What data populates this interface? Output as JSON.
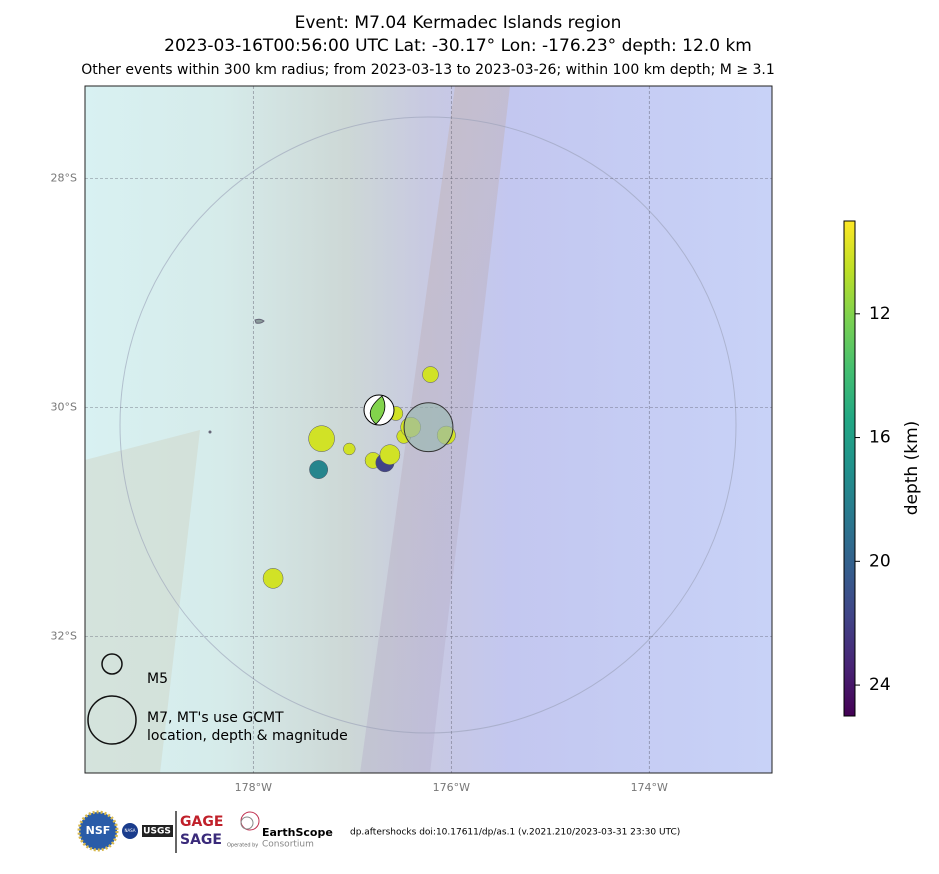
{
  "map": {
    "title": "Event: M7.04 Kermadec Islands region",
    "subtitle": "2023-03-16T00:56:00 UTC Lat: -30.17° Lon: -176.23° depth: 12.0 km",
    "description": "Other events within 300 km radius; from 2023-03-13 to 2023-03-26; within 100 km depth; M ≥ 3.1",
    "xlim": [
      -179.7,
      -172.76
    ],
    "ylim": [
      -33.19,
      -27.19
    ],
    "xticks": [
      {
        "value": -178,
        "label": "178°W"
      },
      {
        "value": -176,
        "label": "176°W"
      },
      {
        "value": -174,
        "label": "174°W"
      }
    ],
    "yticks": [
      {
        "value": -28,
        "label": "28°S"
      },
      {
        "value": -30,
        "label": "30°S"
      },
      {
        "value": -32,
        "label": "32°S"
      }
    ],
    "grid": true,
    "colormap": "viridis",
    "colorbar": {
      "label": "depth (km)",
      "lim": [
        9,
        25
      ],
      "ticks": [
        12,
        16,
        20,
        24
      ]
    },
    "main_event": {
      "lon": -176.23,
      "lat": -30.17,
      "depth": 12.0,
      "mag": 7.04
    },
    "moment_tensor": {
      "lon": -176.73,
      "lat": -30.02,
      "depth": 12.0
    },
    "events": {
      "lon": [
        -176.21,
        -177.31,
        -177.03,
        -177.34,
        -176.79,
        -176.67,
        -176.62,
        -176.48,
        -176.41,
        -176.56,
        -176.05,
        -177.8
      ],
      "lat": [
        -29.71,
        -30.27,
        -30.36,
        -30.54,
        -30.46,
        -30.48,
        -30.41,
        -30.25,
        -30.17,
        -30.05,
        -30.24,
        -31.49
      ],
      "depth": [
        10.1,
        10.1,
        10.1,
        17.8,
        10.1,
        21.8,
        10.1,
        10.1,
        10.1,
        10.1,
        10.1,
        10.1
      ],
      "mag": [
        4.5,
        5.6,
        3.8,
        4.8,
        4.5,
        4.8,
        5.0,
        4.2,
        5.0,
        4.2,
        4.8,
        5.0
      ]
    },
    "legend": {
      "small": "M5",
      "large_line1": "M7, MT's use GCMT",
      "large_line2": "location, depth & magnitude"
    },
    "footer": {
      "nsf": "NSF",
      "nasa": "NASA",
      "usgs": "USGS",
      "gage": "GAGE",
      "sage": "SAGE",
      "earthscope": "EarthScope",
      "consortium": "Consortium",
      "operated": "Operated by",
      "credit": "dp.aftershocks doi:10.17611/dp/as.1 (v.2021.210/2023-03-31 23:30 UTC)"
    }
  }
}
